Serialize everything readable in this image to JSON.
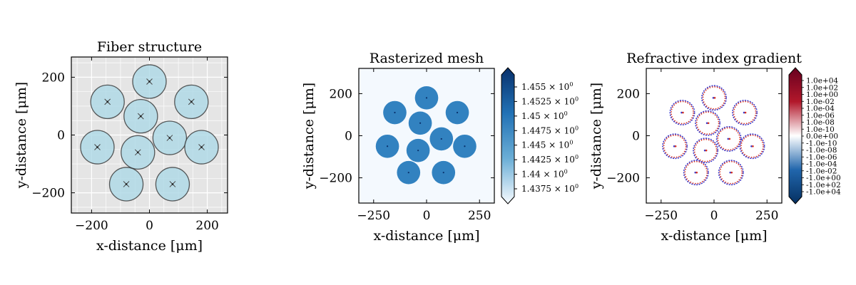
{
  "chart_data": [
    {
      "type": "scatter",
      "title": "Fiber structure",
      "xlabel": "x-distance [μm]",
      "ylabel": "y-distance [μm]",
      "xlim": [
        -270,
        270
      ],
      "ylim": [
        -270,
        270
      ],
      "xticks": [
        -200,
        0,
        200
      ],
      "yticks": [
        -200,
        0,
        200
      ],
      "xtick_labels": [
        "−200",
        "0",
        "200"
      ],
      "ytick_labels": [
        "−200",
        "0",
        "200"
      ],
      "grid": true,
      "background": "#e5e5e5",
      "core_color": "#add8e6",
      "core_radius": 58,
      "cores": [
        {
          "x": 0,
          "y": 185
        },
        {
          "x": -145,
          "y": 115
        },
        {
          "x": 145,
          "y": 115
        },
        {
          "x": -30,
          "y": 65
        },
        {
          "x": -180,
          "y": -42
        },
        {
          "x": 70,
          "y": -10
        },
        {
          "x": -40,
          "y": -60
        },
        {
          "x": 180,
          "y": -42
        },
        {
          "x": -80,
          "y": -170
        },
        {
          "x": 80,
          "y": -170
        }
      ]
    },
    {
      "type": "heatmap",
      "title": "Rasterized mesh",
      "xlabel": "x-distance [μm]",
      "ylabel": "y-distance [μm]",
      "xlim": [
        -320,
        320
      ],
      "ylim": [
        -320,
        320
      ],
      "xticks": [
        -250,
        0,
        250
      ],
      "yticks": [
        -200,
        0,
        200
      ],
      "xtick_labels": [
        "−250",
        "0",
        "250"
      ],
      "ytick_labels": [
        "−200",
        "0",
        "200"
      ],
      "cmap": [
        "#f7fbff",
        "#6baed6",
        "#2171b5",
        "#08306b"
      ],
      "core_value_color": "#3282c0",
      "cladding_value_color": "#f4f9fe",
      "core_radius": 55,
      "cores": [
        {
          "x": 0,
          "y": 180
        },
        {
          "x": -150,
          "y": 110
        },
        {
          "x": 145,
          "y": 110
        },
        {
          "x": -30,
          "y": 60
        },
        {
          "x": -185,
          "y": -50
        },
        {
          "x": 70,
          "y": -15
        },
        {
          "x": -40,
          "y": -70
        },
        {
          "x": 180,
          "y": -50
        },
        {
          "x": -85,
          "y": -175
        },
        {
          "x": 80,
          "y": -175
        }
      ],
      "colorbar_ticks": [
        "1.455",
        "1.4525",
        "1.45",
        "1.4475",
        "1.445",
        "1.4425",
        "1.44",
        "1.4375"
      ],
      "colorbar_exponent": "0"
    },
    {
      "type": "heatmap",
      "title": "Refractive index gradient",
      "xlabel": "x-distance [μm]",
      "ylabel": "y-distance [μm]",
      "xlim": [
        -320,
        320
      ],
      "ylim": [
        -320,
        320
      ],
      "xticks": [
        -250,
        0,
        250
      ],
      "yticks": [
        -200,
        0,
        200
      ],
      "xtick_labels": [
        "−250",
        "0",
        "250"
      ],
      "ytick_labels": [
        "−200",
        "0",
        "200"
      ],
      "cmap": [
        "#053061",
        "#2166ac",
        "#ffffff",
        "#b2182b",
        "#67001f"
      ],
      "ring_colors": [
        "#d7301f",
        "#3a3acc"
      ],
      "core_radius": 55,
      "cores": [
        {
          "x": 0,
          "y": 180
        },
        {
          "x": -150,
          "y": 110
        },
        {
          "x": 145,
          "y": 110
        },
        {
          "x": -30,
          "y": 60
        },
        {
          "x": -185,
          "y": -50
        },
        {
          "x": 70,
          "y": -15
        },
        {
          "x": -40,
          "y": -70
        },
        {
          "x": 180,
          "y": -50
        },
        {
          "x": -85,
          "y": -175
        },
        {
          "x": 80,
          "y": -175
        }
      ],
      "colorbar_ticks": [
        "1.0e+04",
        "1.0e+02",
        "1.0e+00",
        "1.0e-02",
        "1.0e-04",
        "1.0e-06",
        "1.0e-08",
        "1.0e-10",
        "0.0e+00",
        "-1.0e-10",
        "-1.0e-08",
        "-1.0e-06",
        "-1.0e-04",
        "-1.0e-02",
        "-1.0e+00",
        "-1.0e+02",
        "-1.0e+04"
      ]
    }
  ]
}
